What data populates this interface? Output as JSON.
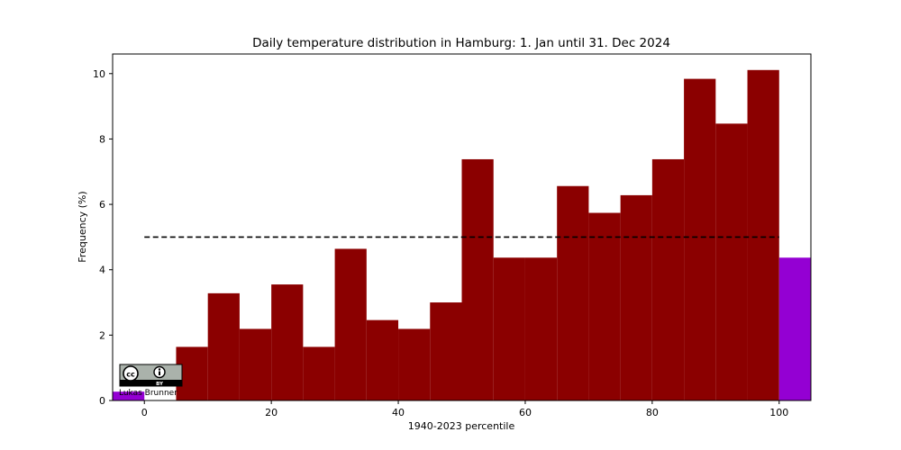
{
  "chart_data": {
    "type": "bar",
    "title": "Daily temperature distribution in Hamburg: 1. Jan until 31. Dec 2024",
    "xlabel": "1940-2023 percentile",
    "ylabel": "Frequency (%)",
    "xlim": [
      -5,
      105
    ],
    "ylim": [
      0,
      10.6
    ],
    "xticks": [
      0,
      20,
      40,
      60,
      80,
      100
    ],
    "yticks": [
      0,
      2,
      4,
      6,
      8,
      10
    ],
    "grid": false,
    "bin_width": 5,
    "series": [
      {
        "color": "#8b0000",
        "bins": [
          {
            "start": 0,
            "value": 0
          },
          {
            "start": 5,
            "value": 1.64
          },
          {
            "start": 10,
            "value": 3.28
          },
          {
            "start": 15,
            "value": 2.19
          },
          {
            "start": 20,
            "value": 3.55
          },
          {
            "start": 25,
            "value": 1.64
          },
          {
            "start": 30,
            "value": 4.64
          },
          {
            "start": 35,
            "value": 2.46
          },
          {
            "start": 40,
            "value": 2.19
          },
          {
            "start": 45,
            "value": 3.0
          },
          {
            "start": 50,
            "value": 7.38
          },
          {
            "start": 55,
            "value": 4.37
          },
          {
            "start": 60,
            "value": 4.37
          },
          {
            "start": 65,
            "value": 6.56
          },
          {
            "start": 70,
            "value": 5.74
          },
          {
            "start": 75,
            "value": 6.28
          },
          {
            "start": 80,
            "value": 7.38
          },
          {
            "start": 85,
            "value": 9.84
          },
          {
            "start": 90,
            "value": 8.47
          },
          {
            "start": 95,
            "value": 10.11
          }
        ]
      },
      {
        "color": "#9400d3",
        "bins": [
          {
            "start": -5,
            "value": 0.27
          },
          {
            "start": 100,
            "value": 4.37
          }
        ]
      }
    ],
    "reference_line": {
      "value": 5,
      "x_start": 0,
      "x_end": 100,
      "color": "#000000",
      "style": "dashed"
    }
  },
  "credit": {
    "author": "Lukas Brunner",
    "license_badge": "BY"
  }
}
